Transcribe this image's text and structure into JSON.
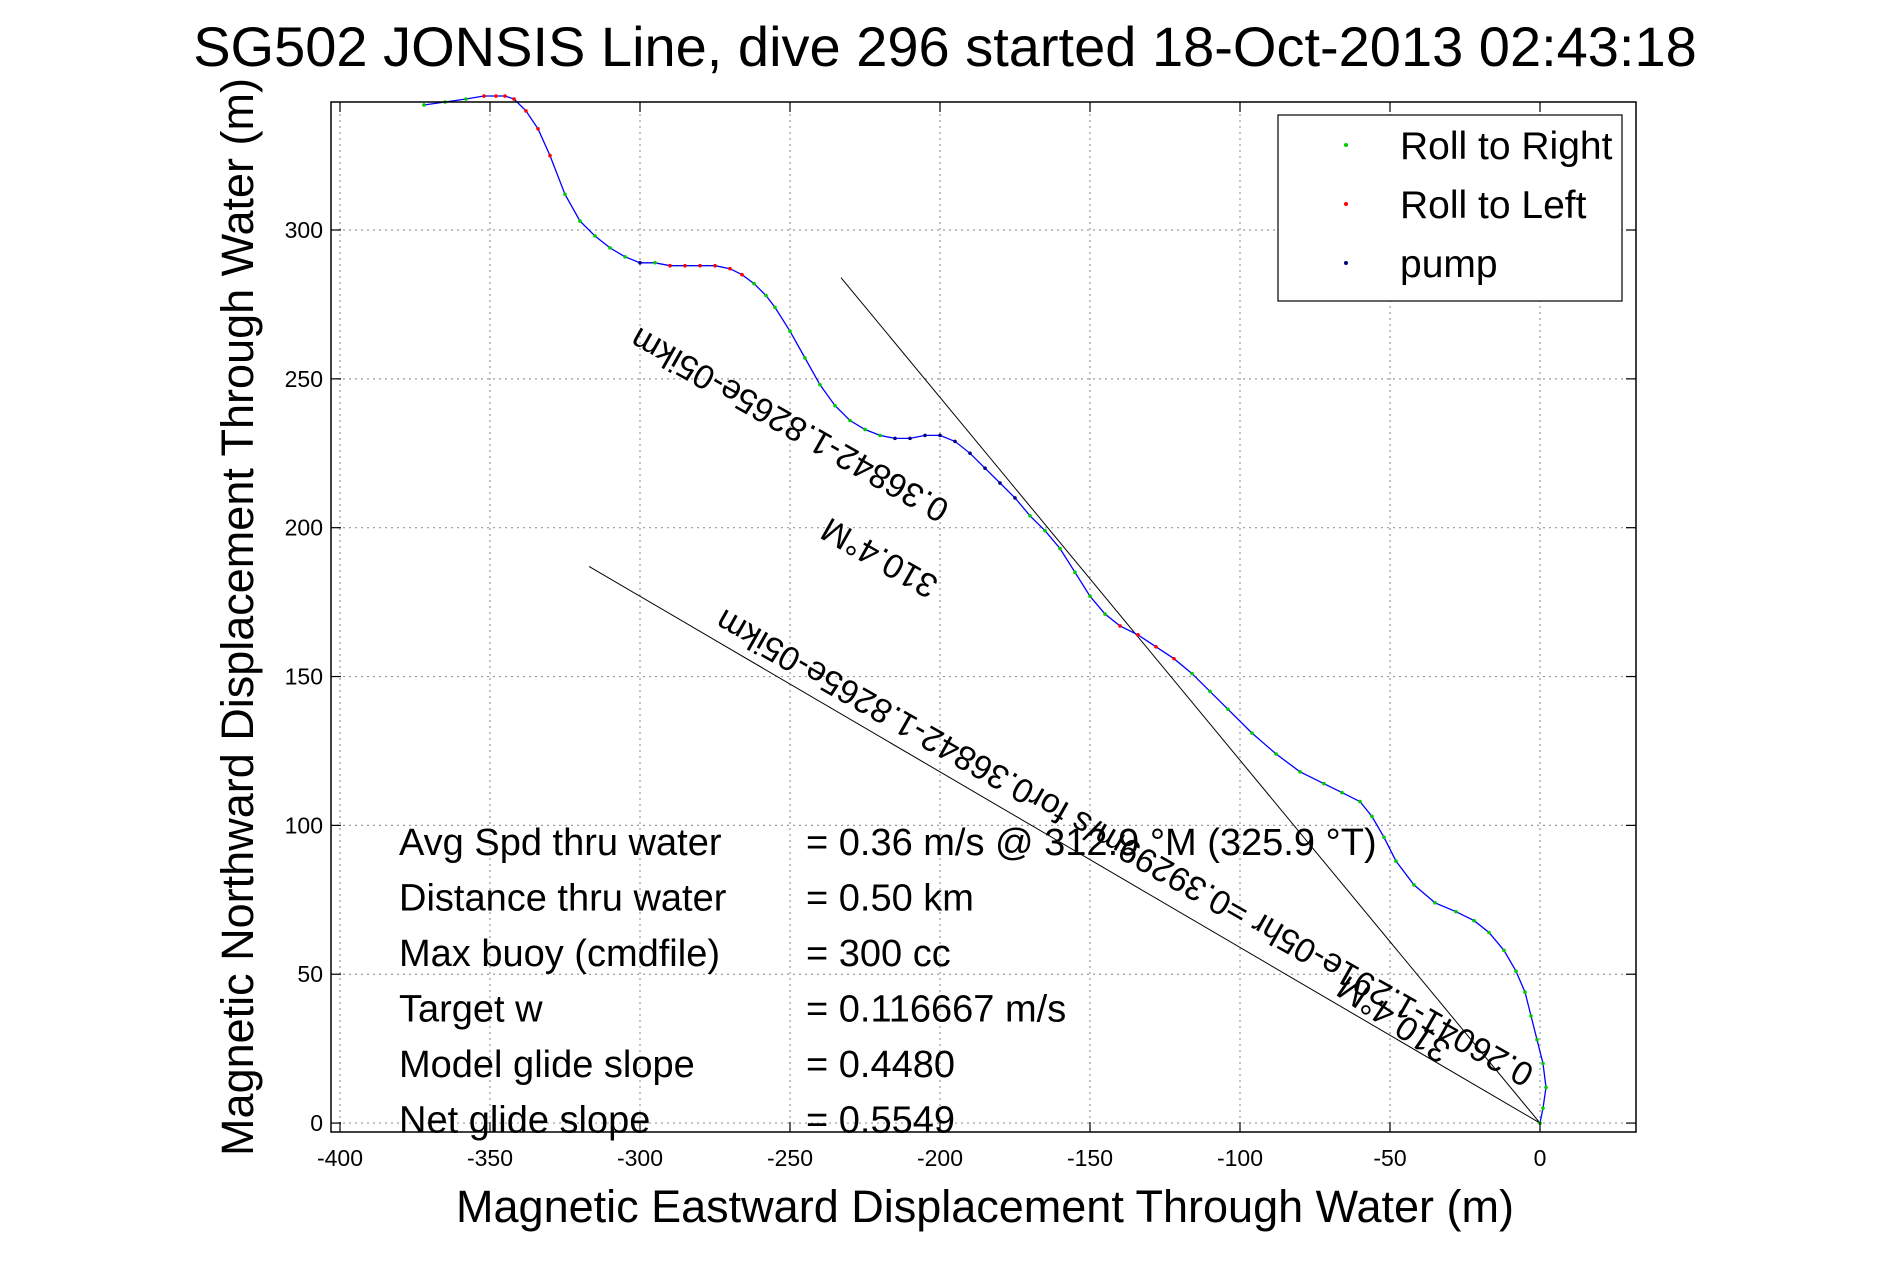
{
  "chart_data": {
    "type": "line",
    "title": "SG502 JONSIS Line, dive 296 started 18-Oct-2013 02:43:18",
    "xlabel": "Magnetic Eastward Displacement Through Water (m)",
    "ylabel": "Magnetic Northward Displacement Through Water (m)",
    "xlim": [
      -400,
      35
    ],
    "ylim": [
      0,
      345
    ],
    "xticks": [
      -400,
      -350,
      -300,
      -250,
      -200,
      -150,
      -100,
      -50,
      0
    ],
    "yticks": [
      0,
      50,
      100,
      150,
      200,
      250,
      300
    ],
    "grid": true,
    "legend_position": "top-right",
    "legend": [
      {
        "label": "Roll to Right",
        "color": "#00cc00"
      },
      {
        "label": "Roll to Left",
        "color": "#ff0000"
      },
      {
        "label": "pump",
        "color": "#000080"
      }
    ],
    "series": [
      {
        "name": "track",
        "color": "#0000ff",
        "x": [
          0,
          1,
          2,
          1,
          -1,
          -3,
          -5,
          -8,
          -12,
          -17,
          -22,
          -28,
          -35,
          -42,
          -48,
          -52,
          -56,
          -60,
          -66,
          -72,
          -80,
          -88,
          -96,
          -104,
          -110,
          -116,
          -122,
          -128,
          -134,
          -140,
          -145,
          -150,
          -155,
          -160,
          -165,
          -170,
          -175,
          -180,
          -185,
          -190,
          -195,
          -200,
          -205,
          -210,
          -215,
          -220,
          -225,
          -230,
          -235,
          -240,
          -245,
          -250,
          -255,
          -258,
          -262,
          -266,
          -270,
          -275,
          -280,
          -285,
          -290,
          -295,
          -300,
          -305,
          -310,
          -315,
          -320,
          -325,
          -330,
          -334,
          -338,
          -342,
          -345,
          -348,
          -352,
          -358,
          -365,
          -372
        ],
        "y": [
          0,
          5,
          12,
          20,
          28,
          36,
          44,
          51,
          58,
          64,
          68,
          71,
          74,
          80,
          88,
          96,
          103,
          108,
          111,
          114,
          118,
          124,
          131,
          139,
          145,
          151,
          156,
          160,
          164,
          167,
          171,
          177,
          185,
          193,
          199,
          204,
          210,
          215,
          220,
          225,
          229,
          231,
          231,
          230,
          230,
          231,
          233,
          236,
          241,
          248,
          257,
          266,
          274,
          278,
          282,
          285,
          287,
          288,
          288,
          288,
          288,
          289,
          289,
          291,
          294,
          298,
          303,
          312,
          325,
          334,
          340,
          344,
          345,
          345,
          345,
          344,
          343,
          342
        ]
      }
    ],
    "reference_lines": [
      {
        "x": [
          0,
          -233
        ],
        "y": [
          0,
          284
        ]
      },
      {
        "x": [
          0,
          -317
        ],
        "y": [
          0,
          187
        ]
      }
    ],
    "slope_labels": [
      "310.4°M",
      "0.36842-1.8265e-05ikm",
      "0.26041-1.291e-05hr =0.39299m/s for0.36842-1.8265e-05ikm",
      "310.4°M"
    ],
    "stats": [
      {
        "label": "Avg Spd thru water",
        "value": "=  0.36 m/s @ 312.9 °M (325.9 °T)"
      },
      {
        "label": "Distance thru water",
        "value": "=  0.50 km"
      },
      {
        "label": "Max buoy (cmdfile)",
        "value": "= 300 cc"
      },
      {
        "label": "Target w",
        "value": "= 0.116667 m/s"
      },
      {
        "label": "Model glide slope",
        "value": "= 0.4480"
      },
      {
        "label": "Net glide slope",
        "value": "= 0.5549"
      }
    ]
  }
}
